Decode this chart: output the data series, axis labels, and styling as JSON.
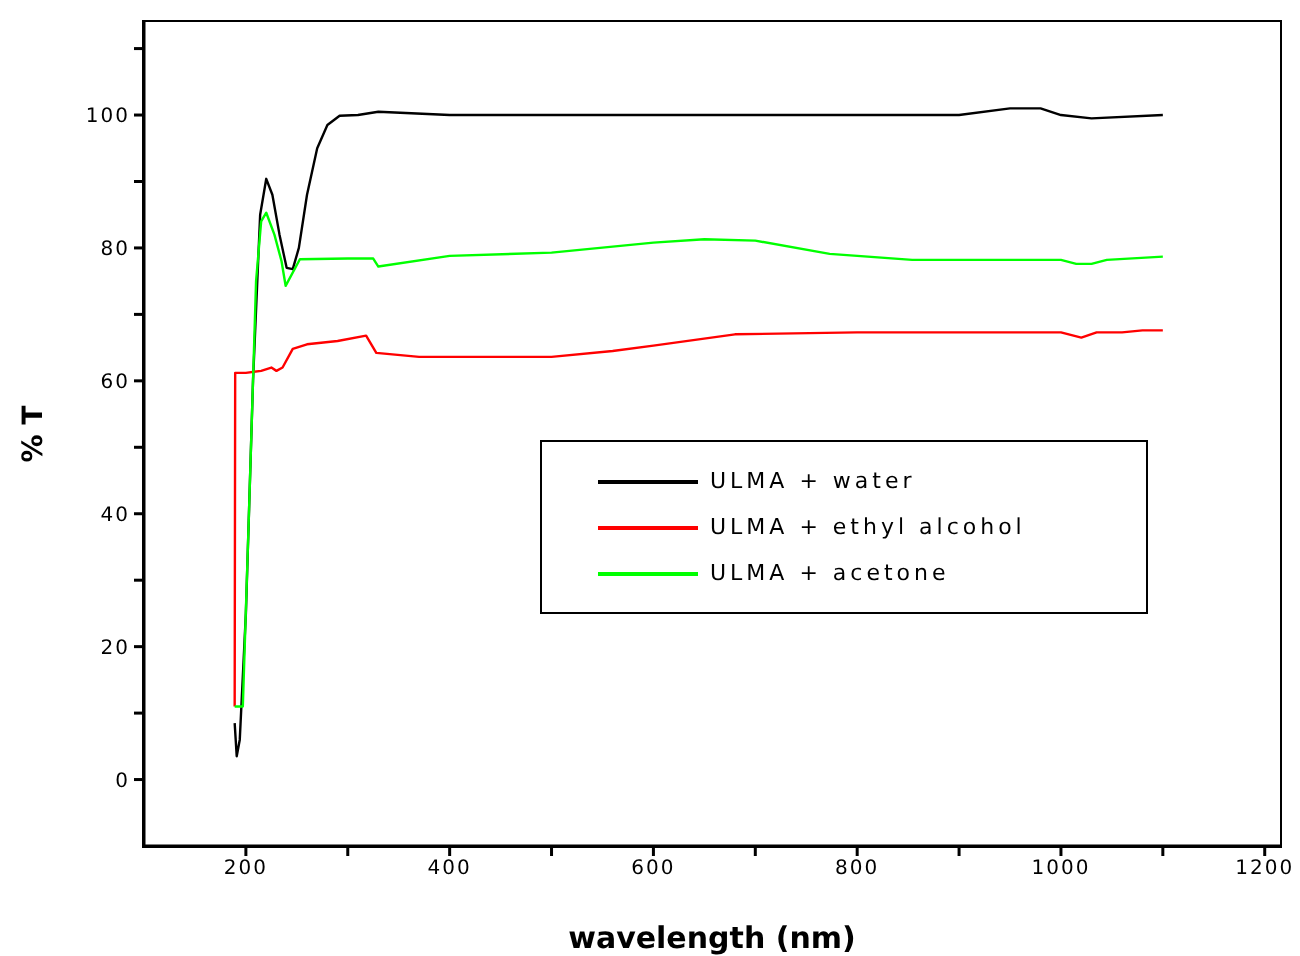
{
  "chart_data": {
    "type": "line",
    "xlabel": "wavelength (nm)",
    "ylabel": "% T",
    "xlim": [
      100,
      1215
    ],
    "ylim": [
      -10,
      114
    ],
    "xticks": [
      200,
      {
        "value": 300,
        "label": null
      },
      400,
      {
        "value": 500,
        "label": null
      },
      600,
      {
        "value": 700,
        "label": null
      },
      800,
      {
        "value": 900,
        "label": null
      },
      1000,
      {
        "value": 1100,
        "label": null
      },
      1200
    ],
    "yticks": [
      0,
      {
        "value": 10,
        "label": null
      },
      20,
      {
        "value": 30,
        "label": null
      },
      40,
      {
        "value": 50,
        "label": null
      },
      60,
      {
        "value": 70,
        "label": null
      },
      80,
      {
        "value": 90,
        "label": null
      },
      100,
      {
        "value": 110,
        "label": null
      }
    ],
    "legend": "right",
    "marker": "none",
    "line_style": "solid",
    "series": [
      {
        "name": "ULMA + water",
        "color": "#000000",
        "x": [
          189,
          191,
          194,
          200,
          207,
          214,
          220,
          226,
          233,
          240,
          246,
          252,
          260,
          270,
          280,
          292,
          310,
          330,
          400,
          600,
          900,
          950,
          980,
          1000,
          1030,
          1100
        ],
        "values": [
          8.5,
          3.5,
          6,
          25,
          60,
          85,
          90.4,
          88,
          82,
          77,
          76.8,
          80,
          88,
          95,
          98.5,
          99.9,
          100,
          100.5,
          100,
          100,
          100,
          101,
          101,
          100,
          99.5,
          100
        ]
      },
      {
        "name": "ULMA + ethyl alcohol",
        "color": "#ff0000",
        "x": [
          189,
          189.5,
          200,
          215,
          225,
          230,
          236,
          246,
          260,
          290,
          318,
          328,
          370,
          500,
          560,
          600,
          680,
          800,
          1000,
          1020,
          1035,
          1060,
          1080,
          1100
        ],
        "values": [
          11,
          61.2,
          61.2,
          61.5,
          62,
          61.5,
          62,
          64.8,
          65.5,
          66,
          66.8,
          64.2,
          63.6,
          63.6,
          64.5,
          65.3,
          67,
          67.3,
          67.3,
          66.5,
          67.3,
          67.3,
          67.6,
          67.6
        ]
      },
      {
        "name": "ULMA + acetone",
        "color": "#00ff00",
        "x": [
          189,
          197,
          203,
          210,
          215,
          220,
          228,
          235,
          239,
          253,
          300,
          325,
          330,
          400,
          500,
          600,
          650,
          700,
          773,
          854,
          1000,
          1015,
          1030,
          1045,
          1100
        ],
        "values": [
          11,
          11,
          40,
          75,
          84,
          85.3,
          82,
          78,
          74.3,
          78.3,
          78.4,
          78.4,
          77.2,
          78.8,
          79.3,
          80.8,
          81.3,
          81.1,
          79.1,
          78.2,
          78.2,
          77.6,
          77.6,
          78.2,
          78.7
        ]
      }
    ]
  }
}
